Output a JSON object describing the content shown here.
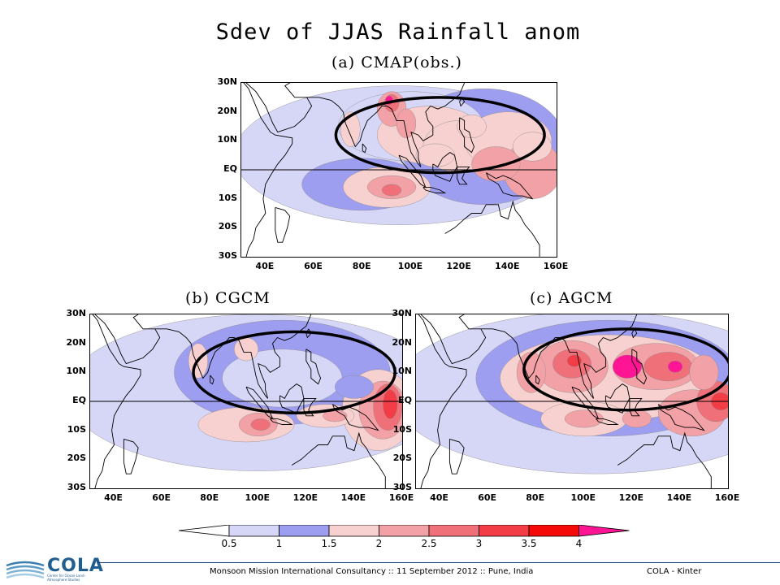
{
  "title": "Sdev of JJAS Rainfall anom",
  "panels": [
    {
      "id": "a",
      "title": "(a)  CMAP(obs.)"
    },
    {
      "id": "b",
      "title": "(b)  CGCM"
    },
    {
      "id": "c",
      "title": "(c)  AGCM"
    }
  ],
  "lat_labels": [
    "30N",
    "20N",
    "10N",
    "EQ",
    "10S",
    "20S",
    "30S"
  ],
  "lon_labels": [
    "40E",
    "60E",
    "80E",
    "100E",
    "120E",
    "140E",
    "160E"
  ],
  "colorbar": {
    "levels": [
      "0.5",
      "1",
      "1.5",
      "2",
      "2.5",
      "3",
      "3.5",
      "4"
    ],
    "colors": [
      "#ffffff",
      "#d6d6f7",
      "#9e9ef0",
      "#f7d0d0",
      "#f2a2a6",
      "#ef7078",
      "#f23d47",
      "#f50a0a",
      "#ff1493"
    ]
  },
  "footer": {
    "center": "Monsoon Mission International Consultancy :: 11 September 2012 :: Pune, India",
    "right": "COLA - Kinter",
    "logo_text": "COLA",
    "logo_sub": "Center for Ocean-Land-Atmosphere Studies"
  }
}
